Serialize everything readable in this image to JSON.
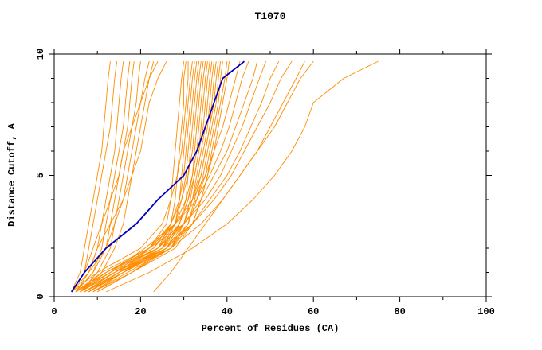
{
  "chart_data": {
    "type": "line",
    "title": "T1070",
    "xlabel": "Percent of Residues (CA)",
    "ylabel": "Distance Cutoff, A",
    "xlim": [
      0,
      100
    ],
    "ylim": [
      0,
      10
    ],
    "x_major_ticks": [
      0,
      20,
      40,
      60,
      80,
      100
    ],
    "x_minor_ticks": [
      10,
      30,
      50,
      70,
      90
    ],
    "y_major_ticks": [
      0,
      5,
      10
    ],
    "y_minor_ticks": [
      1,
      2,
      3,
      4,
      6,
      7,
      8,
      9
    ],
    "grid": false,
    "legend": null,
    "colors": {
      "model": "#FF8C00",
      "highlight": "#0000BB",
      "axis": "#000000",
      "background": "#FFFFFF"
    },
    "y_levels": [
      0.2,
      1,
      2,
      3,
      4,
      5,
      6,
      7,
      8,
      9,
      9.7
    ],
    "highlight_series": {
      "name": "selected-model",
      "xs": [
        4,
        7,
        12,
        19,
        24,
        30,
        33,
        35,
        37,
        39,
        44
      ]
    },
    "model_series": [
      {
        "xs": [
          4,
          6,
          7,
          8,
          9,
          10,
          11,
          11.5,
          12,
          12.5,
          13
        ]
      },
      {
        "xs": [
          4,
          7,
          8,
          9,
          10,
          11,
          12,
          13,
          13.5,
          14,
          14.5
        ]
      },
      {
        "xs": [
          5,
          8,
          10,
          11,
          12,
          13,
          14,
          14.5,
          15,
          15.5,
          16
        ]
      },
      {
        "xs": [
          5,
          9,
          11,
          12,
          13,
          14,
          15,
          16,
          16.5,
          17,
          17.5
        ]
      },
      {
        "xs": [
          4,
          8,
          12,
          13,
          14,
          15,
          16,
          17,
          17.5,
          18,
          18.5
        ]
      },
      {
        "xs": [
          6,
          10,
          13,
          14,
          15,
          16,
          17,
          18,
          19,
          19.5,
          20
        ]
      },
      {
        "xs": [
          5,
          9,
          12,
          14,
          16,
          17,
          18,
          19,
          20,
          21,
          22
        ]
      },
      {
        "xs": [
          6,
          11,
          14,
          16,
          17,
          18,
          19,
          20,
          21,
          22,
          23
        ]
      },
      {
        "xs": [
          4,
          7,
          9,
          11,
          13,
          15,
          16,
          18,
          20,
          22,
          24
        ]
      },
      {
        "xs": [
          5,
          8,
          10,
          13,
          16,
          18,
          20,
          21,
          22,
          24,
          26
        ]
      },
      {
        "xs": [
          5,
          12,
          22,
          26,
          27,
          27.5,
          28,
          28.5,
          29,
          29.5,
          30
        ]
      },
      {
        "xs": [
          6,
          14,
          24,
          27,
          28,
          28.5,
          29,
          29.5,
          30,
          30,
          30.5
        ]
      },
      {
        "xs": [
          4,
          10,
          20,
          25,
          27,
          28.5,
          29.5,
          30,
          30.5,
          31,
          31
        ]
      },
      {
        "xs": [
          7,
          15,
          25,
          28,
          29,
          29.5,
          30,
          30.5,
          31,
          31.5,
          32
        ]
      },
      {
        "xs": [
          5,
          12,
          23,
          27,
          29,
          30,
          30.5,
          31,
          31.5,
          32,
          32.5
        ]
      },
      {
        "xs": [
          6,
          13,
          24,
          28,
          29.5,
          30.5,
          31,
          31.5,
          32,
          32.5,
          33
        ]
      },
      {
        "xs": [
          8,
          16,
          26,
          29,
          30.5,
          31,
          31.5,
          32,
          32.5,
          33,
          33.5
        ]
      },
      {
        "xs": [
          5,
          11,
          22,
          27,
          29.5,
          31,
          32,
          32.5,
          33,
          33.5,
          34
        ]
      },
      {
        "xs": [
          7,
          14,
          25,
          29,
          31,
          32,
          32.5,
          33,
          33.5,
          34,
          34.5
        ]
      },
      {
        "xs": [
          6,
          12,
          23,
          28,
          30.5,
          32,
          33,
          33.5,
          34,
          34.5,
          35
        ]
      },
      {
        "xs": [
          8,
          15,
          26,
          30,
          31.5,
          32.5,
          33.5,
          34,
          34.5,
          35,
          35.5
        ]
      },
      {
        "xs": [
          5,
          13,
          24,
          29,
          31,
          32.5,
          33.5,
          34.5,
          35,
          35.5,
          36
        ]
      },
      {
        "xs": [
          7,
          16,
          27,
          30,
          32,
          33,
          34,
          35,
          35.5,
          36,
          36.5
        ]
      },
      {
        "xs": [
          6,
          14,
          25,
          30,
          32,
          33.5,
          34.5,
          35.5,
          36,
          36.5,
          37
        ]
      },
      {
        "xs": [
          9,
          17,
          27,
          31,
          32.5,
          34,
          35,
          36,
          36.5,
          37,
          37.5
        ]
      },
      {
        "xs": [
          5,
          12,
          24,
          30,
          32,
          34,
          35,
          36,
          37,
          37.5,
          38
        ]
      },
      {
        "xs": [
          8,
          16,
          27,
          31,
          33,
          34.5,
          35.5,
          36.5,
          37.5,
          38,
          38.5
        ]
      },
      {
        "xs": [
          6,
          14,
          26,
          31,
          33,
          35,
          36,
          37,
          38,
          38.5,
          39
        ]
      },
      {
        "xs": [
          10,
          18,
          28,
          32,
          34,
          35.5,
          36.5,
          37.5,
          38.5,
          39.5,
          40
        ]
      },
      {
        "xs": [
          7,
          15,
          27,
          32,
          34,
          35.5,
          37,
          38,
          39,
          40,
          40.5
        ]
      },
      {
        "xs": [
          8,
          15,
          22,
          28,
          32,
          35,
          37,
          39,
          40.5,
          42,
          43
        ]
      },
      {
        "xs": [
          6,
          13,
          21,
          28,
          33,
          36,
          38.5,
          40.5,
          42,
          43.5,
          45
        ]
      },
      {
        "xs": [
          9,
          16,
          24,
          30,
          34,
          37,
          40,
          42,
          44,
          46,
          47
        ]
      },
      {
        "xs": [
          7,
          14,
          22,
          30,
          35,
          38.5,
          41,
          43.5,
          45.5,
          47.5,
          49
        ]
      },
      {
        "xs": [
          10,
          18,
          26,
          32,
          36,
          40,
          43,
          45.5,
          48,
          50,
          52
        ]
      },
      {
        "xs": [
          8,
          16,
          25,
          32,
          37,
          41,
          44,
          47,
          50,
          52.5,
          55
        ]
      },
      {
        "xs": [
          23,
          27,
          31,
          35,
          39,
          43,
          47,
          51,
          54,
          57,
          60
        ]
      },
      {
        "xs": [
          12,
          22,
          32,
          40,
          46,
          51,
          55,
          58,
          60,
          67,
          75
        ]
      },
      {
        "xs": [
          9,
          18,
          27,
          34,
          39,
          43,
          47,
          50,
          53,
          56,
          58
        ]
      }
    ]
  }
}
